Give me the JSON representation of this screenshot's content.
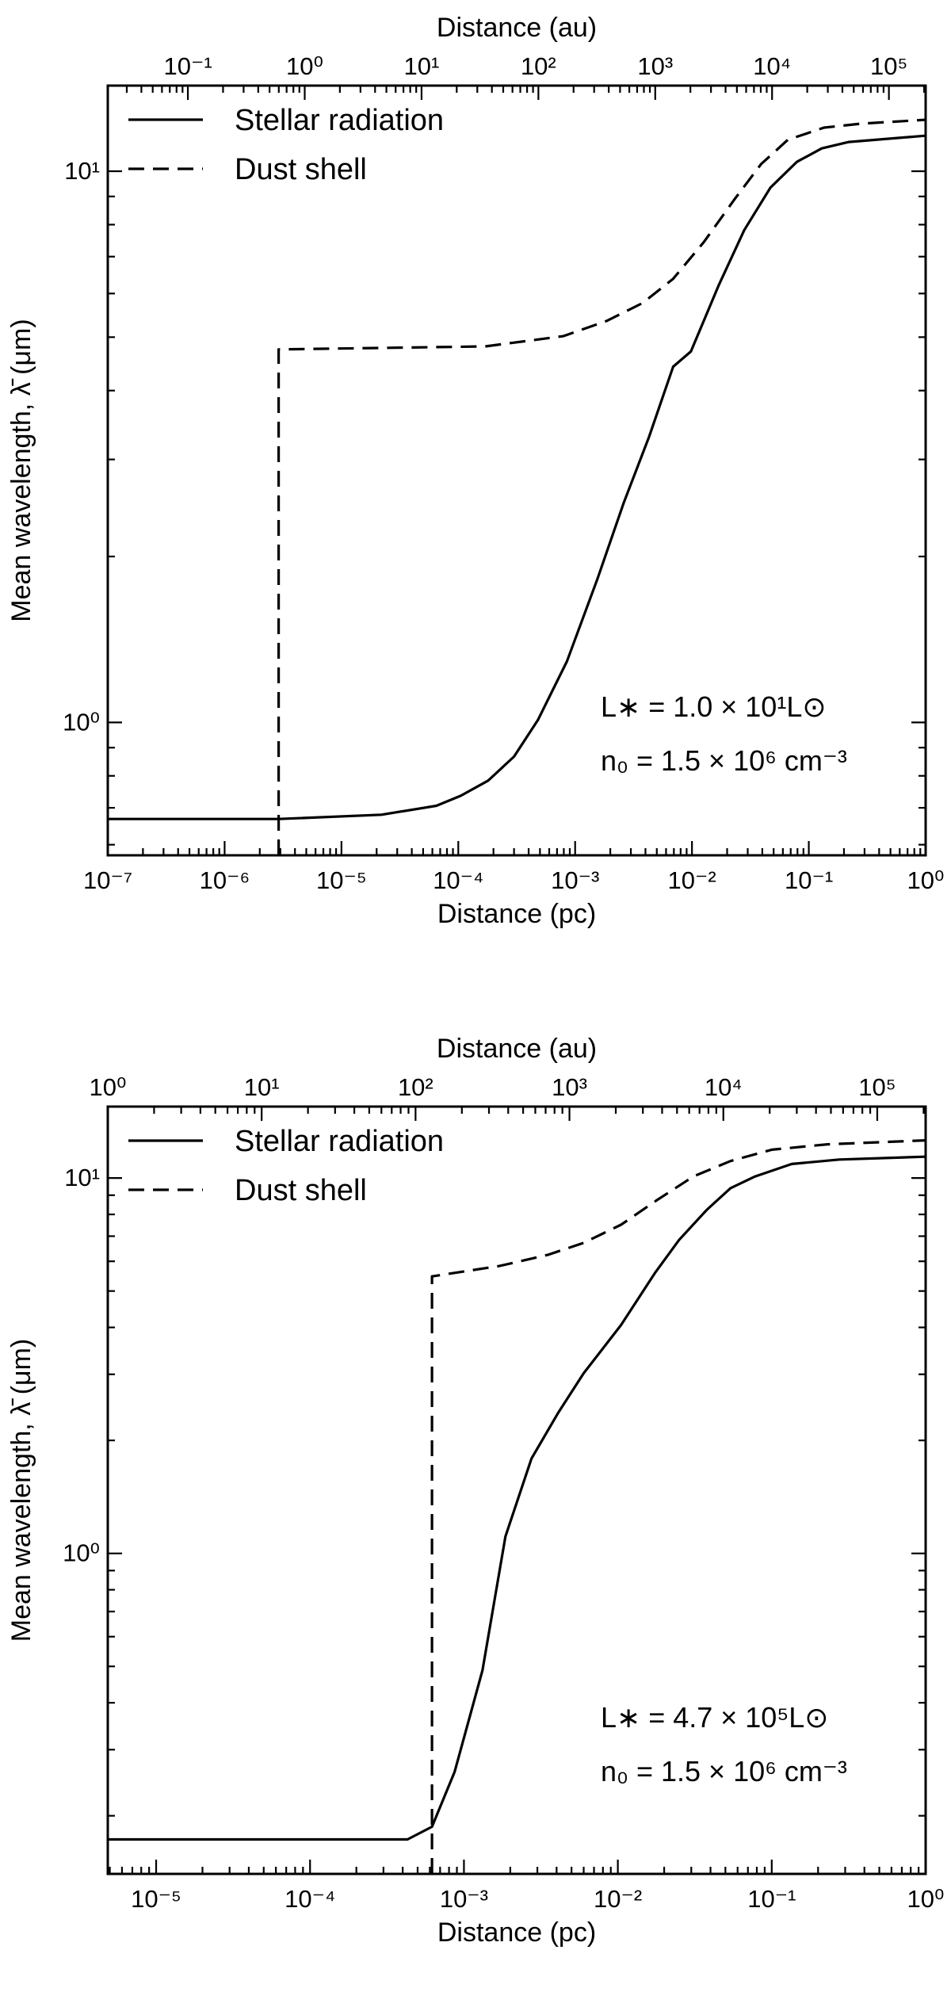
{
  "chart_data": [
    {
      "type": "line",
      "xscale": "log",
      "yscale": "log",
      "xlim": [
        1e-07,
        1
      ],
      "ylim": [
        0.574,
        14.3
      ],
      "xlabel": "Distance (pc)",
      "x2label": "Distance (au)",
      "ylabel": "Mean wavelength, λ̄ (μm)",
      "xticks": [
        1e-07,
        1e-06,
        1e-05,
        0.0001,
        0.001,
        0.01,
        0.1,
        1
      ],
      "xticklabels": [
        "10⁻⁷",
        "10⁻⁶",
        "10⁻⁵",
        "10⁻⁴",
        "10⁻³",
        "10⁻²",
        "10⁻¹",
        "10⁰"
      ],
      "x2ticks": [
        0.1,
        1,
        10,
        100,
        1000,
        10000,
        100000
      ],
      "x2ticklabels": [
        "10⁻¹",
        "10⁰",
        "10¹",
        "10²",
        "10³",
        "10⁴",
        "10⁵"
      ],
      "yticks": [
        1,
        10
      ],
      "yticklabels": [
        "10⁰",
        "10¹"
      ],
      "grid": false,
      "legend": "top-left",
      "annotations": [
        "L∗ = 1.0 × 10¹L⊙",
        "n₀ = 1.5 × 10⁶ cm⁻³"
      ],
      "series": [
        {
          "name": "Stellar radiation",
          "style": "solid",
          "x": [
            1e-07,
            2.9e-06,
            2.2e-05,
            6.5e-05,
            0.000105,
            0.00018,
            0.0003,
            0.00048,
            0.00085,
            0.00155,
            0.0026,
            0.0043,
            0.0069,
            0.0098,
            0.017,
            0.028,
            0.047,
            0.079,
            0.129,
            0.22,
            1
          ],
          "y": [
            0.668,
            0.668,
            0.68,
            0.706,
            0.736,
            0.784,
            0.867,
            1.01,
            1.29,
            1.82,
            2.5,
            3.3,
            4.42,
            4.71,
            6.22,
            7.82,
            9.34,
            10.4,
            11.0,
            11.3,
            11.6
          ]
        },
        {
          "name": "Dust shell",
          "style": "dashed",
          "x": [
            2.9e-06,
            2.9e-06,
            0.00017,
            0.00079,
            0.00186,
            0.0038,
            0.0069,
            0.0126,
            0.023,
            0.039,
            0.066,
            0.135,
            0.28,
            1
          ],
          "y": [
            0.574,
            4.75,
            4.81,
            5.02,
            5.35,
            5.77,
            6.38,
            7.43,
            8.88,
            10.3,
            11.4,
            12.0,
            12.2,
            12.4
          ]
        }
      ]
    },
    {
      "type": "line",
      "xscale": "log",
      "yscale": "log",
      "xlim": [
        4.85e-06,
        1
      ],
      "ylim": [
        0.14,
        15.5
      ],
      "xlabel": "Distance (pc)",
      "x2label": "Distance (au)",
      "ylabel": "Mean wavelength, λ̄ (μm)",
      "xticks": [
        1e-05,
        0.0001,
        0.001,
        0.01,
        0.1,
        1
      ],
      "xticklabels": [
        "10⁻⁵",
        "10⁻⁴",
        "10⁻³",
        "10⁻²",
        "10⁻¹",
        "10⁰"
      ],
      "x2ticks": [
        1,
        10,
        100,
        1000,
        10000,
        100000
      ],
      "x2ticklabels": [
        "10⁰",
        "10¹",
        "10²",
        "10³",
        "10⁴",
        "10⁵"
      ],
      "yticks": [
        1,
        10
      ],
      "yticklabels": [
        "10⁰",
        "10¹"
      ],
      "grid": false,
      "legend": "top-left",
      "annotations": [
        "L∗ = 4.7 × 10⁵L⊙",
        "n₀ = 1.5 × 10⁶ cm⁻³"
      ],
      "series": [
        {
          "name": "Stellar radiation",
          "style": "solid",
          "x": [
            4.85e-06,
            0.00043,
            0.00062,
            0.00087,
            0.00132,
            0.00186,
            0.00275,
            0.0041,
            0.006,
            0.0105,
            0.0174,
            0.025,
            0.038,
            0.054,
            0.078,
            0.135,
            0.275,
            1
          ],
          "y": [
            0.173,
            0.173,
            0.187,
            0.262,
            0.488,
            1.11,
            1.79,
            2.37,
            3.02,
            4.06,
            5.58,
            6.84,
            8.24,
            9.4,
            10.1,
            10.9,
            11.2,
            11.4
          ]
        },
        {
          "name": "Dust shell",
          "style": "dashed",
          "x": [
            0.00062,
            0.00062,
            0.0017,
            0.0035,
            0.006,
            0.0105,
            0.0178,
            0.031,
            0.054,
            0.1,
            0.23,
            1
          ],
          "y": [
            0.14,
            5.47,
            5.83,
            6.24,
            6.72,
            7.51,
            8.71,
            10.1,
            11.1,
            11.9,
            12.3,
            12.6
          ]
        }
      ]
    }
  ]
}
